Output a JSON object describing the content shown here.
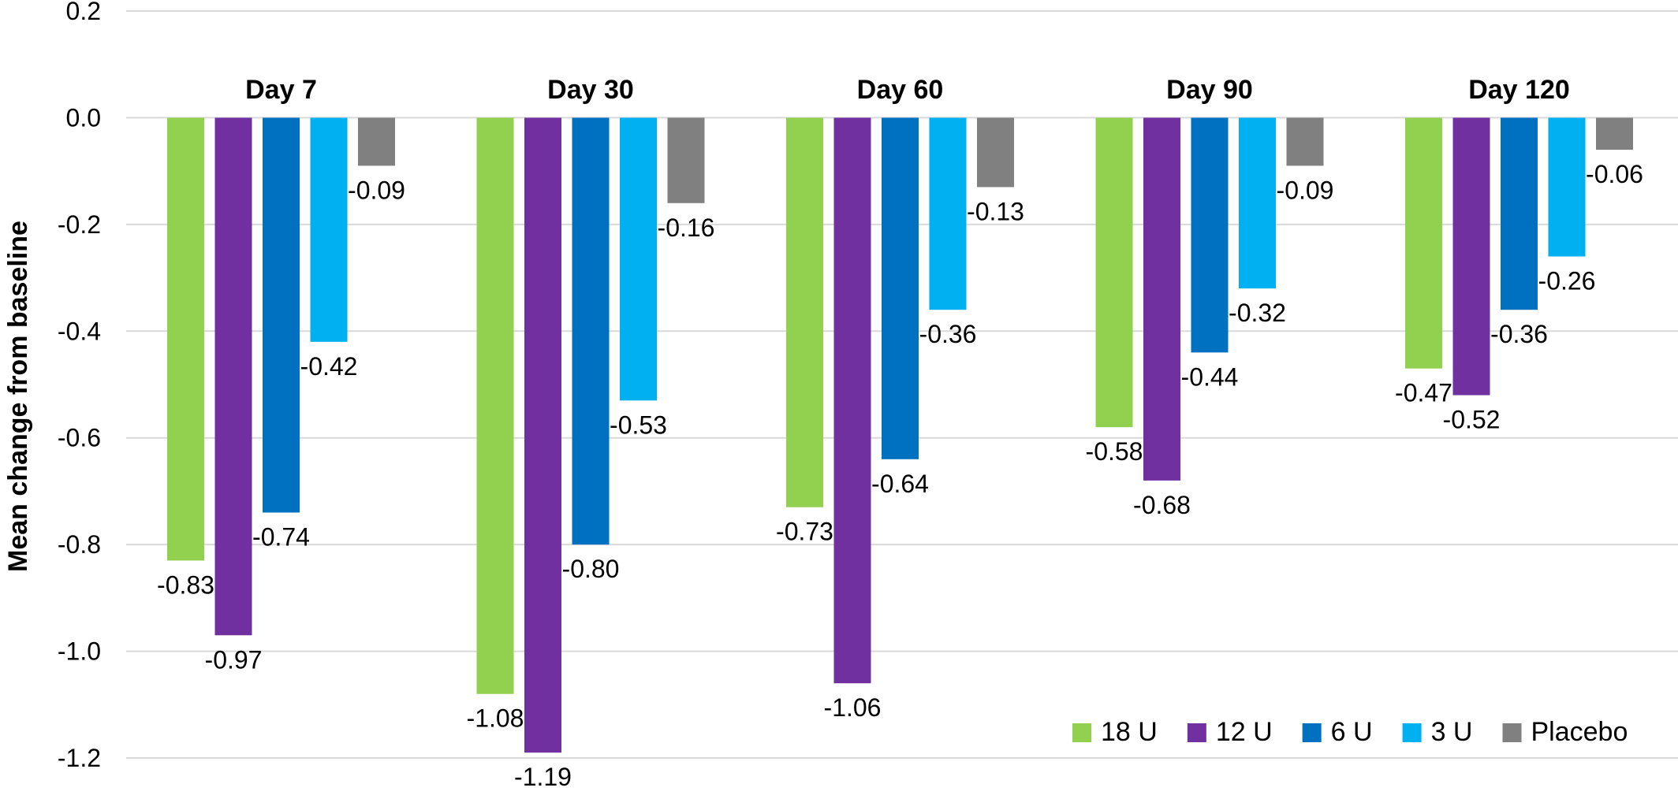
{
  "chart_data": {
    "type": "bar",
    "title": "",
    "xlabel": "",
    "ylabel": "Mean change from baseline",
    "ylim": [
      -1.2,
      0.2
    ],
    "yticks": [
      "0.2",
      "0.0",
      "-0.2",
      "-0.4",
      "-0.6",
      "-0.8",
      "-1.0",
      "-1.2"
    ],
    "ytick_values": [
      0.2,
      0.0,
      -0.2,
      -0.4,
      -0.6,
      -0.8,
      -1.0,
      -1.2
    ],
    "grid": true,
    "legend_position": "bottom-right",
    "categories": [
      "Day 7",
      "Day 30",
      "Day 60",
      "Day 90",
      "Day 120"
    ],
    "series": [
      {
        "name": "18 U",
        "color": "#92d050",
        "values": [
          -0.83,
          -1.08,
          -0.73,
          -0.58,
          -0.47
        ],
        "labels": [
          "-0.83",
          "-1.08",
          "-0.73",
          "-0.58",
          "-0.47"
        ]
      },
      {
        "name": "12 U",
        "color": "#7030a0",
        "values": [
          -0.97,
          -1.19,
          -1.06,
          -0.68,
          -0.52
        ],
        "labels": [
          "-0.97",
          "-1.19",
          "-1.06",
          "-0.68",
          "-0.52"
        ]
      },
      {
        "name": "6 U",
        "color": "#0070c0",
        "values": [
          -0.74,
          -0.8,
          -0.64,
          -0.44,
          -0.36
        ],
        "labels": [
          "-0.74",
          "-0.80",
          "-0.64",
          "-0.44",
          "-0.36"
        ]
      },
      {
        "name": "3 U",
        "color": "#00b0f0",
        "values": [
          -0.42,
          -0.53,
          -0.36,
          -0.32,
          -0.26
        ],
        "labels": [
          "-0.42",
          "-0.53",
          "-0.36",
          "-0.32",
          "-0.26"
        ]
      },
      {
        "name": "Placebo",
        "color": "#808080",
        "values": [
          -0.09,
          -0.16,
          -0.13,
          -0.09,
          -0.06
        ],
        "labels": [
          "-0.09",
          "-0.16",
          "-0.13",
          "-0.09",
          "-0.06"
        ]
      }
    ]
  }
}
